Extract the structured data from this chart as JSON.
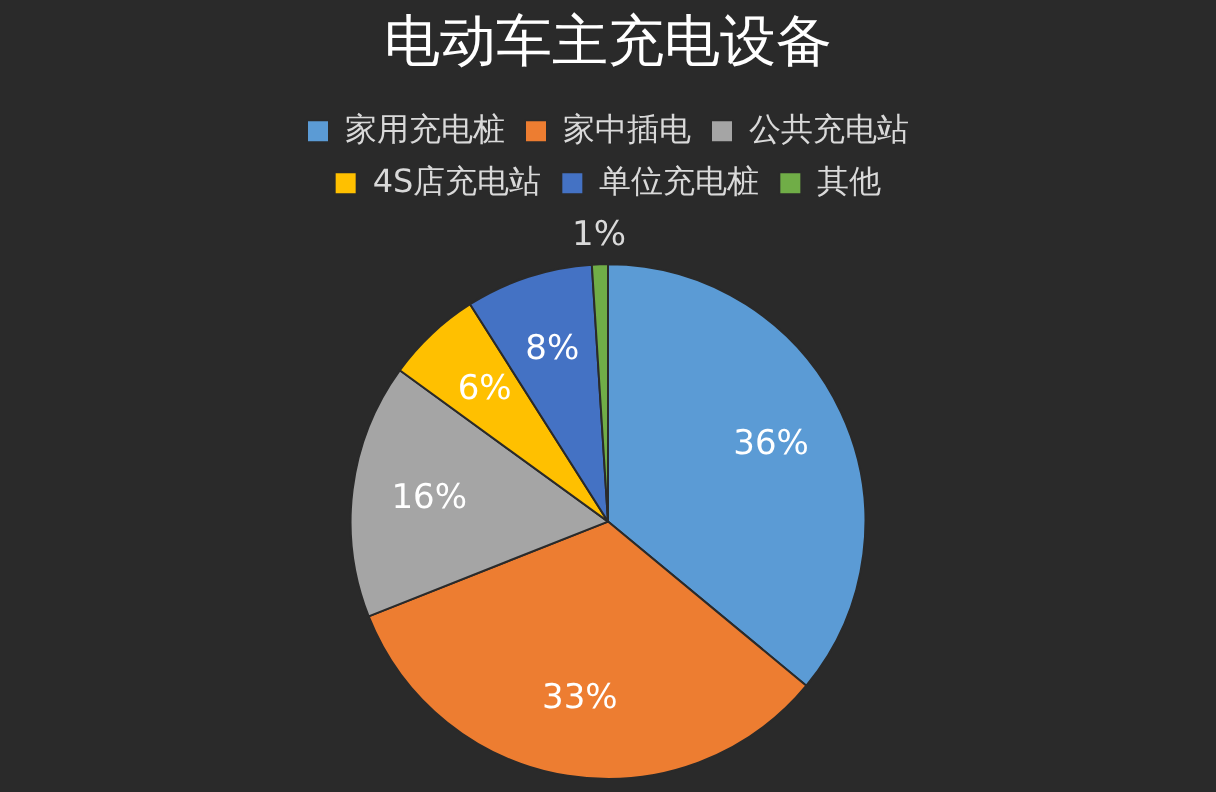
{
  "chart_data": {
    "type": "pie",
    "title": "电动车主充电设备",
    "categories": [
      "家用充电桩",
      "家中插电",
      "公共充电站",
      "4S店充电站",
      "单位充电桩",
      "其他"
    ],
    "values": [
      36,
      33,
      16,
      6,
      8,
      1
    ],
    "value_labels": [
      "36%",
      "33%",
      "16%",
      "6%",
      "8%",
      "1%"
    ],
    "colors": [
      "#5b9bd5",
      "#ed7d31",
      "#a5a5a5",
      "#ffc000",
      "#4472c4",
      "#70ad47"
    ],
    "legend": "top"
  }
}
